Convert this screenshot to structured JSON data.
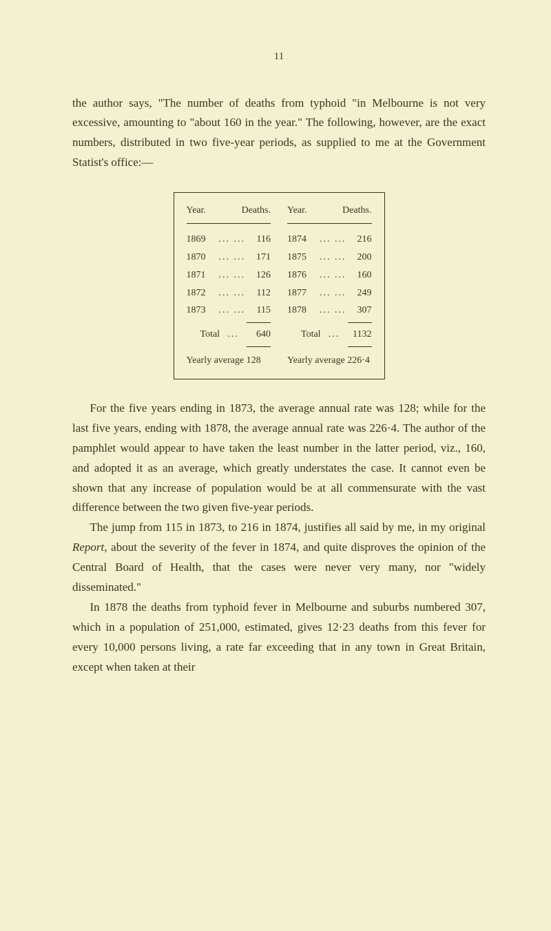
{
  "page_number": "11",
  "paragraphs": {
    "p1": "the author says, \"The number of deaths from typhoid \"in Melbourne is not very excessive, amounting to \"about 160 in the year.\" The following, however, are the exact numbers, distributed in two five-year periods, as supplied to me at the Government Statist's office:—",
    "p2": "For the five years ending in 1873, the average annual rate was 128; while for the last five years, ending with 1878, the average annual rate was 226·4. The author of the pamphlet would appear to have taken the least number in the latter period, viz., 160, and adopted it as an average, which greatly understates the case. It cannot even be shown that any increase of population would be at all commensurate with the vast difference between the two given five-year periods.",
    "p3_part1": "The jump from 115 in 1873, to 216 in 1874, justifies all said by me, in my original ",
    "p3_italic": "Report",
    "p3_part2": ", about the severity of the fever in 1874, and quite disproves the opinion of the Central Board of Health, that the cases were never very many, nor \"widely disseminated.\"",
    "p4": "In 1878 the deaths from typhoid fever in Melbourne and suburbs numbered 307, which in a population of 251,000, estimated, gives 12·23 deaths from this fever for every 10,000 persons living, a rate far exceeding that in any town in Great Britain, except when taken at their"
  },
  "table": {
    "header_year": "Year.",
    "header_deaths": "Deaths.",
    "left_col": {
      "rows": [
        {
          "year": "1869",
          "deaths": "116"
        },
        {
          "year": "1870",
          "deaths": "171"
        },
        {
          "year": "1871",
          "deaths": "126"
        },
        {
          "year": "1872",
          "deaths": "112"
        },
        {
          "year": "1873",
          "deaths": "115"
        }
      ],
      "total_label": "Total",
      "total_value": "640",
      "yearly_avg": "Yearly average  128"
    },
    "right_col": {
      "rows": [
        {
          "year": "1874",
          "deaths": "216"
        },
        {
          "year": "1875",
          "deaths": "200"
        },
        {
          "year": "1876",
          "deaths": "160"
        },
        {
          "year": "1877",
          "deaths": "249"
        },
        {
          "year": "1878",
          "deaths": "307"
        }
      ],
      "total_label": "Total",
      "total_value": "1132",
      "yearly_avg": "Yearly average 226·4"
    }
  },
  "colors": {
    "background": "#f5f0d0",
    "text": "#3a3520",
    "border": "#3a3520"
  }
}
